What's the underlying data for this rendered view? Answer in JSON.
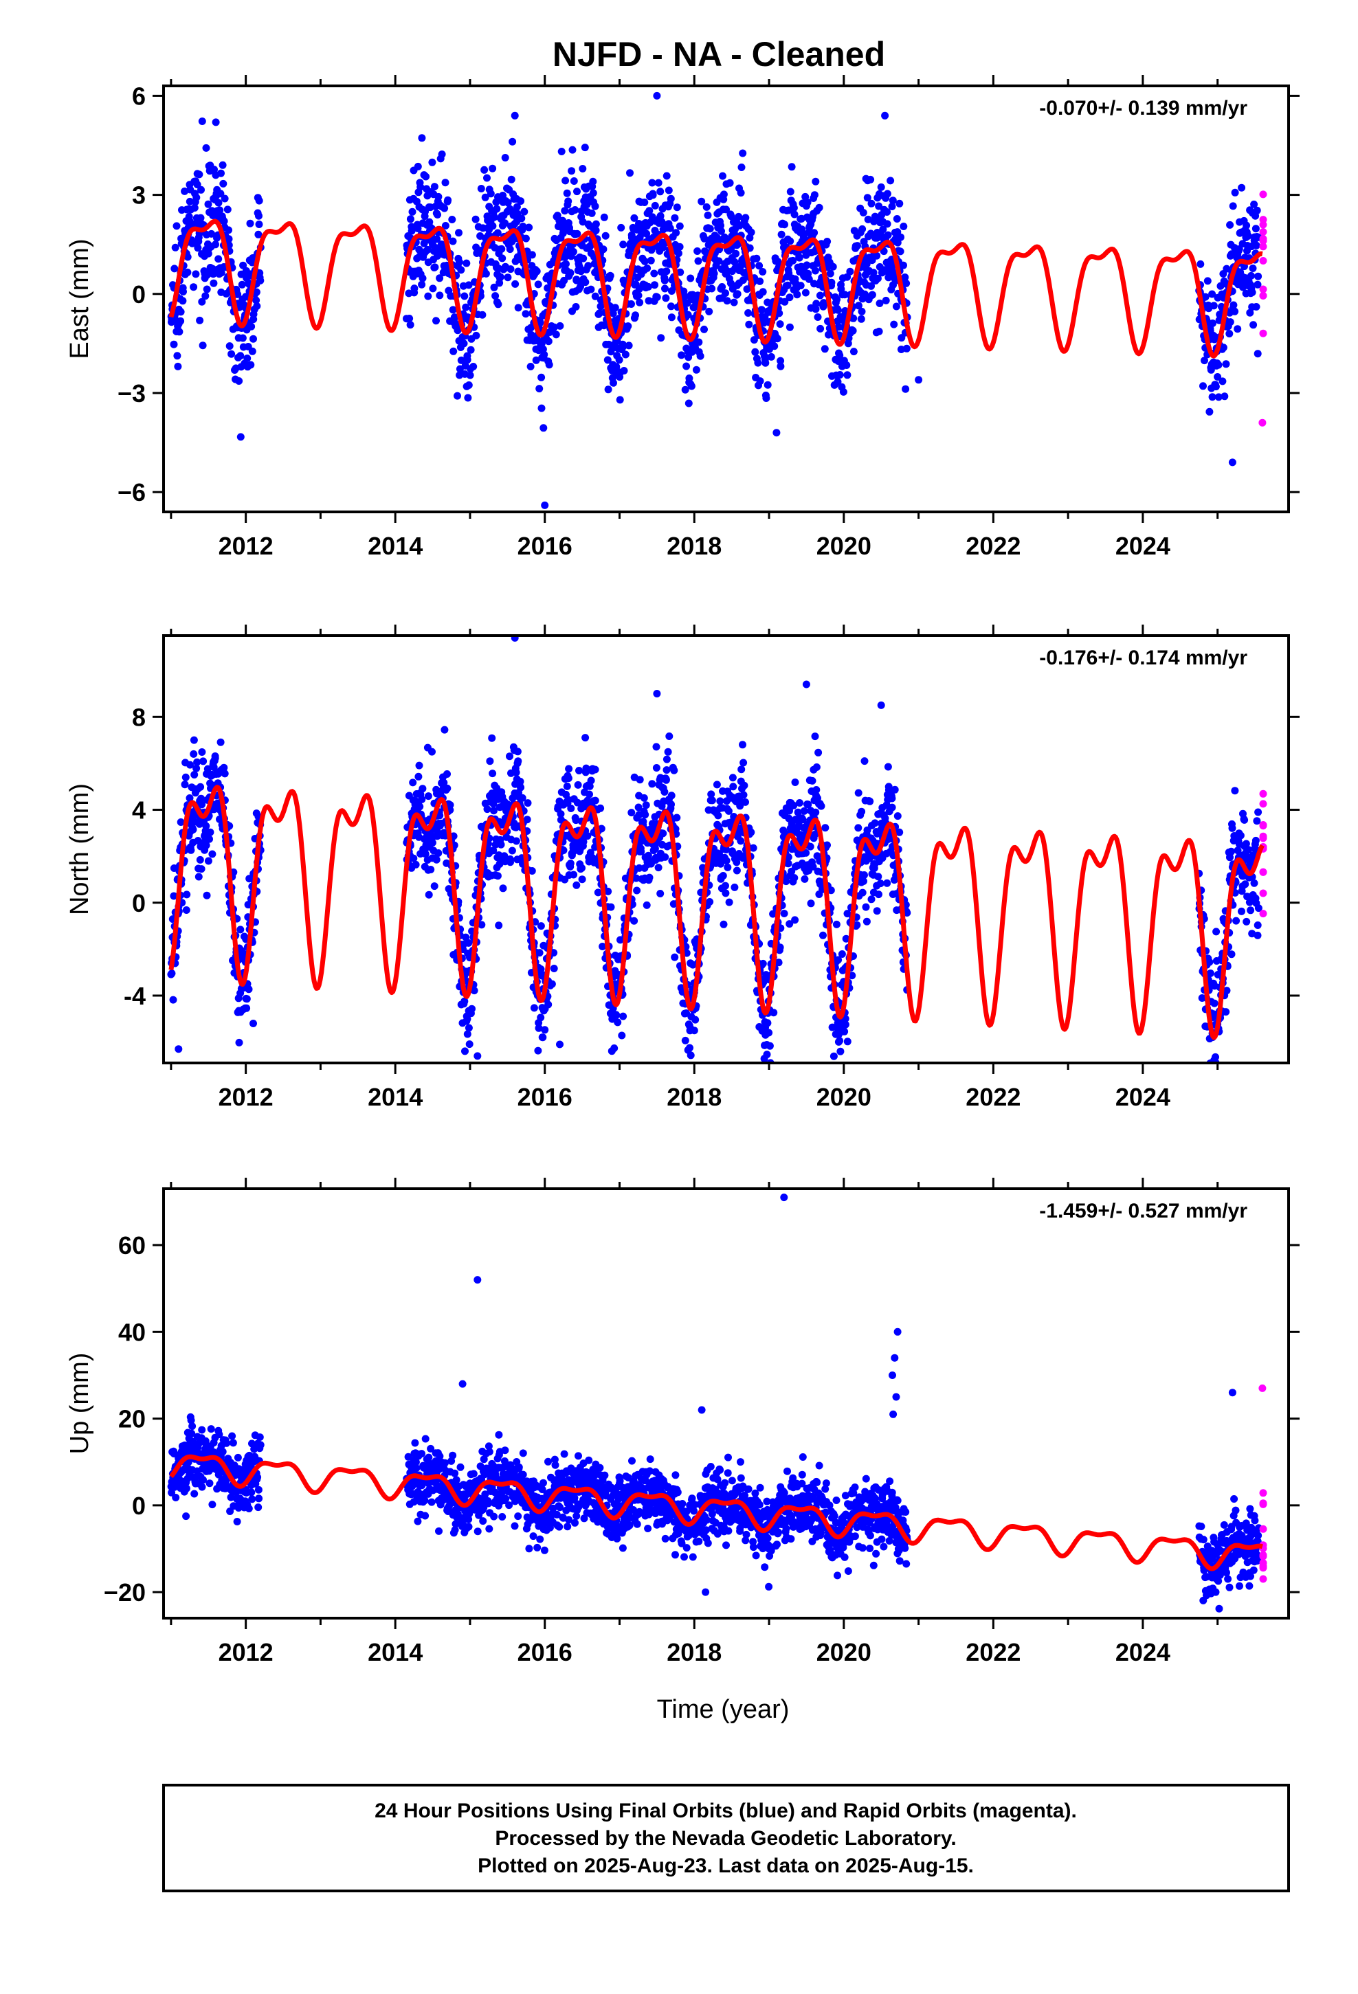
{
  "title": "NJFD  - NA - Cleaned",
  "xlabel": "Time (year)",
  "footer": [
    "24 Hour Positions Using Final Orbits (blue) and Rapid Orbits (magenta).",
    "Processed by the Nevada Geodetic Laboratory.",
    "Plotted on 2025-Aug-23. Last data on 2025-Aug-15."
  ],
  "colors": {
    "final": "#0000ff",
    "rapid": "#ff00ff",
    "model": "#ff0000",
    "frame": "#000000"
  },
  "chart_data": [
    {
      "type": "scatter",
      "ylabel": "East (mm)",
      "rate": "-0.070+/- 0.139 mm/yr",
      "xlim": [
        2010.9,
        2025.95
      ],
      "ylim": [
        -6.6,
        6.3
      ],
      "xticks": [
        2012,
        2014,
        2016,
        2018,
        2020,
        2022,
        2024
      ],
      "yticks": [
        -6,
        -3,
        0,
        3,
        6
      ],
      "ytick_labels": [
        "−6",
        "−3",
        "0",
        "3",
        "6"
      ],
      "data_segments": [
        [
          2011.0,
          2012.2
        ],
        [
          2014.15,
          2020.85
        ],
        [
          2024.75,
          2025.55
        ]
      ],
      "rapid_segment": [
        2025.55,
        2025.62
      ],
      "model": {
        "offset": 0.6,
        "trend": -0.07,
        "amp1": 1.45,
        "phase1": 1.3,
        "amp2": 0.55,
        "phase2": 0.8,
        "t0": 2018.0
      },
      "noise_sd": 1.0,
      "outliers": [
        [
          2011.6,
          5.2
        ],
        [
          2015.6,
          5.4
        ],
        [
          2016.0,
          -6.4
        ],
        [
          2017.5,
          6.0
        ],
        [
          2018.6,
          3.2
        ],
        [
          2019.1,
          -4.2
        ],
        [
          2020.55,
          5.4
        ],
        [
          2021.0,
          -2.6
        ],
        [
          2025.2,
          -5.1
        ],
        [
          2025.6,
          -3.9
        ]
      ]
    },
    {
      "type": "scatter",
      "ylabel": "North (mm)",
      "rate": "-0.176+/- 0.174 mm/yr",
      "xlim": [
        2010.9,
        2025.95
      ],
      "ylim": [
        -6.9,
        11.5
      ],
      "xticks": [
        2012,
        2014,
        2016,
        2018,
        2020,
        2022,
        2024
      ],
      "yticks": [
        -4,
        0,
        4,
        8
      ],
      "ytick_labels": [
        "-4",
        "0",
        "4",
        "8"
      ],
      "data_segments": [
        [
          2011.0,
          2012.2
        ],
        [
          2014.15,
          2020.85
        ],
        [
          2024.75,
          2025.55
        ]
      ],
      "rapid_segment": [
        2025.55,
        2025.62
      ],
      "model": {
        "offset": 0.8,
        "trend": -0.176,
        "amp1": 3.6,
        "phase1": 1.35,
        "amp2": 1.8,
        "phase2": 0.9,
        "t0": 2018.0
      },
      "noise_sd": 1.3,
      "outliers": [
        [
          2011.1,
          -6.3
        ],
        [
          2015.6,
          11.4
        ],
        [
          2015.1,
          -6.6
        ],
        [
          2016.2,
          -6.1
        ],
        [
          2017.5,
          9.0
        ],
        [
          2019.5,
          9.4
        ],
        [
          2020.5,
          8.5
        ],
        [
          2018.0,
          -5.5
        ],
        [
          2012.1,
          -5.2
        ]
      ]
    },
    {
      "type": "scatter",
      "ylabel": "Up (mm)",
      "rate": "-1.459+/- 0.527 mm/yr",
      "xlim": [
        2010.9,
        2025.95
      ],
      "ylim": [
        -26,
        73
      ],
      "xticks": [
        2012,
        2014,
        2016,
        2018,
        2020,
        2022,
        2024
      ],
      "yticks": [
        -20,
        0,
        20,
        40,
        60
      ],
      "ytick_labels": [
        "−20",
        "0",
        "20",
        "40",
        "60"
      ],
      "data_segments": [
        [
          2011.0,
          2012.2
        ],
        [
          2014.15,
          2020.85
        ],
        [
          2024.75,
          2025.55
        ]
      ],
      "rapid_segment": [
        2025.55,
        2025.62
      ],
      "model": {
        "offset": -0.5,
        "trend": -1.459,
        "amp1": 2.8,
        "phase1": 1.1,
        "amp2": 1.2,
        "phase2": 0.5,
        "t0": 2018.0
      },
      "noise_sd": 3.8,
      "outliers": [
        [
          2019.2,
          71.0
        ],
        [
          2015.1,
          52.0
        ],
        [
          2014.9,
          28.0
        ],
        [
          2018.1,
          22.0
        ],
        [
          2020.72,
          40.0
        ],
        [
          2020.68,
          34.0
        ],
        [
          2020.65,
          30.0
        ],
        [
          2020.7,
          25.0
        ],
        [
          2020.66,
          21.0
        ],
        [
          2025.2,
          26.0
        ],
        [
          2025.6,
          27.0
        ],
        [
          2011.2,
          -2.5
        ],
        [
          2018.15,
          -20.0
        ]
      ]
    }
  ]
}
